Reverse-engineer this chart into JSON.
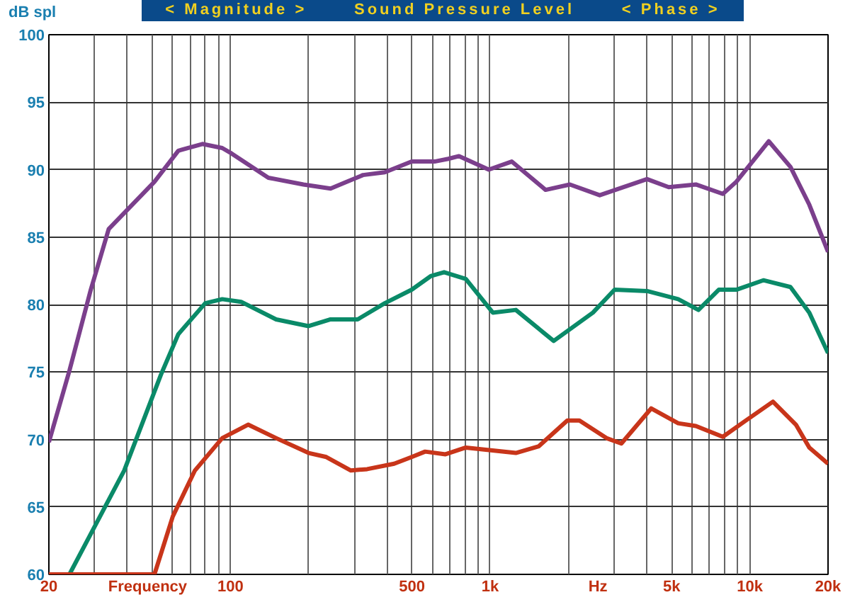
{
  "chart_data": {
    "type": "line",
    "title": "Sound Pressure Level",
    "ylabel": "dB spl",
    "xlabel": "Frequency",
    "annotations": [
      "< Magnitude >",
      "< Phase >",
      "Hz"
    ],
    "log": "x",
    "grid": true,
    "marker": "none",
    "line_style": "solid",
    "xlim": [
      20,
      20000
    ],
    "ylim": [
      60,
      100
    ],
    "xticks": [
      20,
      {
        "value": 30,
        "label": null
      },
      {
        "value": 40,
        "label": null
      },
      {
        "value": 50,
        "label": null
      },
      {
        "value": 60,
        "label": null
      },
      {
        "value": 70,
        "label": null
      },
      {
        "value": 80,
        "label": null
      },
      {
        "value": 90,
        "label": null
      },
      100,
      {
        "value": 200,
        "label": null
      },
      {
        "value": 300,
        "label": null
      },
      {
        "value": 400,
        "label": null
      },
      500,
      {
        "value": 600,
        "label": null
      },
      {
        "value": 700,
        "label": null
      },
      {
        "value": 800,
        "label": null
      },
      {
        "value": 900,
        "label": null
      },
      {
        "value": 1000,
        "label": "1k"
      },
      {
        "value": 2000,
        "label": null
      },
      {
        "value": 3000,
        "label": null
      },
      {
        "value": 4000,
        "label": null
      },
      {
        "value": 5000,
        "label": "5k"
      },
      {
        "value": 6000,
        "label": null
      },
      {
        "value": 7000,
        "label": null
      },
      {
        "value": 8000,
        "label": null
      },
      {
        "value": 9000,
        "label": null
      },
      {
        "value": 10000,
        "label": "10k"
      },
      {
        "value": 20000,
        "label": "20k"
      }
    ],
    "yticks": [
      60,
      65,
      70,
      75,
      80,
      85,
      90,
      95,
      100
    ],
    "series": [
      {
        "color": "#7b3f8c",
        "x": [
          20,
          24,
          29,
          34,
          51,
          63,
          78,
          93,
          101,
          140,
          191,
          243,
          324,
          393,
          499,
          611,
          690,
          759,
          988,
          1211,
          1635,
          2028,
          2642,
          4018,
          4870,
          6194,
          7870,
          8870,
          11830,
          14330,
          16940,
          20000
        ],
        "values": [
          69.8,
          75.1,
          81.1,
          85.6,
          89.1,
          91.4,
          91.9,
          91.6,
          91.2,
          89.4,
          88.9,
          88.6,
          89.6,
          89.8,
          90.6,
          90.6,
          90.8,
          91.0,
          90.0,
          90.6,
          88.5,
          88.9,
          88.1,
          89.3,
          88.7,
          88.9,
          88.2,
          89.1,
          92.1,
          90.2,
          87.4,
          83.9
        ]
      },
      {
        "color": "#0a8a68",
        "x": [
          24,
          39,
          54,
          63,
          80,
          93,
          110,
          150,
          200,
          243,
          309,
          393,
          499,
          590,
          665,
          806,
          1024,
          1256,
          1757,
          2488,
          3014,
          4018,
          5297,
          6340,
          7590,
          8870,
          11270,
          14330,
          16940,
          20000
        ],
        "values": [
          60,
          67.7,
          74.8,
          77.8,
          80.1,
          80.4,
          80.2,
          78.9,
          78.4,
          78.9,
          78.9,
          80.1,
          81.1,
          82.1,
          82.4,
          81.9,
          79.4,
          79.6,
          77.3,
          79.4,
          81.1,
          81.0,
          80.4,
          79.6,
          81.1,
          81.1,
          81.8,
          81.3,
          79.4,
          76.4
        ]
      },
      {
        "color": "#c8351a",
        "x": [
          20,
          51,
          60,
          73,
          93,
          117,
          150,
          200,
          234,
          291,
          336,
          427,
          499,
          562,
          673,
          806,
          1256,
          1540,
          1982,
          2207,
          2805,
          3201,
          4168,
          5297,
          6194,
          7870,
          9640,
          12270,
          15040,
          16940,
          20000
        ],
        "values": [
          60,
          60,
          64.3,
          67.7,
          70.1,
          71.1,
          70.1,
          69.0,
          68.7,
          67.7,
          67.8,
          68.2,
          68.7,
          69.1,
          68.9,
          69.4,
          69.0,
          69.5,
          71.4,
          71.4,
          70.1,
          69.7,
          72.3,
          71.2,
          71.0,
          70.2,
          71.4,
          72.8,
          71.1,
          69.4,
          68.2
        ]
      }
    ]
  }
}
